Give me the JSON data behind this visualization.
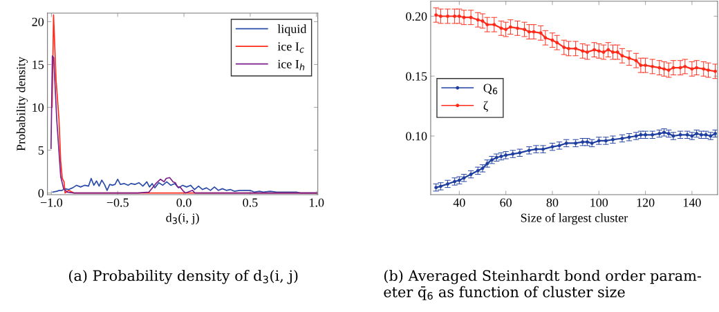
{
  "chart_data": [
    {
      "type": "line",
      "xlabel": "d$_{3}$(i, j)",
      "ylabel": "Probability density",
      "xlim": [
        -1.03,
        1.01
      ],
      "ylim": [
        -0.2,
        21
      ],
      "xticks": [
        {
          "value": -1.0,
          "label": "−1.0"
        },
        {
          "value": -0.5,
          "label": "−0.5"
        },
        {
          "value": 0.0,
          "label": "0.0"
        },
        {
          "value": 0.5,
          "label": "0.5"
        },
        {
          "value": 1.0,
          "label": "1.0"
        }
      ],
      "yticks": [
        0,
        5,
        10,
        15,
        20
      ],
      "grid": false,
      "legend": "top right",
      "marker": "none",
      "line_style": "solid",
      "annotations": [
        "(a) Probability density of d$_{3}$(i, j)"
      ],
      "series": [
        {
          "name": "liquid",
          "color": "#2a4aa8",
          "x": [
            -0.99,
            -0.96,
            -0.94,
            -0.92,
            -0.9,
            -0.87,
            -0.84,
            -0.81,
            -0.78,
            -0.75,
            -0.72,
            -0.7,
            -0.68,
            -0.66,
            -0.64,
            -0.62,
            -0.6,
            -0.58,
            -0.56,
            -0.54,
            -0.52,
            -0.5,
            -0.48,
            -0.45,
            -0.42,
            -0.4,
            -0.37,
            -0.34,
            -0.31,
            -0.28,
            -0.26,
            -0.24,
            -0.22,
            -0.19,
            -0.16,
            -0.13,
            -0.1,
            -0.07,
            -0.04,
            -0.01,
            0.02,
            0.05,
            0.08,
            0.11,
            0.14,
            0.17,
            0.2,
            0.23,
            0.26,
            0.29,
            0.32,
            0.35,
            0.38,
            0.42,
            0.46,
            0.5,
            0.53,
            0.57,
            0.6,
            0.65,
            0.7,
            0.75,
            0.8,
            0.85,
            0.88,
            0.95,
            1.0
          ],
          "values": [
            0.1,
            0.2,
            0.3,
            0.3,
            0.5,
            0.4,
            0.6,
            0.9,
            0.7,
            0.9,
            0.8,
            1.7,
            0.9,
            1.4,
            0.8,
            1.5,
            1.0,
            0.3,
            1.0,
            0.9,
            1.0,
            1.6,
            1.0,
            1.1,
            0.9,
            1.1,
            1.0,
            1.2,
            0.8,
            1.3,
            0.7,
            1.1,
            0.6,
            1.2,
            0.9,
            1.3,
            0.9,
            1.1,
            0.6,
            0.9,
            0.7,
            0.9,
            0.4,
            0.8,
            0.4,
            0.6,
            0.3,
            0.7,
            0.3,
            0.5,
            0.3,
            0.4,
            0.2,
            0.3,
            0.3,
            0.3,
            0.1,
            0.2,
            0.1,
            0.2,
            0.1,
            0.1,
            0.1,
            0.1,
            0.0,
            0.0,
            0.0
          ]
        },
        {
          "name": "ice I$_{c}$",
          "color": "#ff2a1a",
          "x": [
            -0.995,
            -0.984,
            -0.965,
            -0.943,
            -0.93,
            -0.918,
            -0.905,
            -0.897,
            -0.87,
            -0.83,
            0.0,
            1.0
          ],
          "values": [
            10,
            20.8,
            13.2,
            8.6,
            3.7,
            1.7,
            1.3,
            0.0,
            0.3,
            0.0,
            0.0,
            0.0
          ]
        },
        {
          "name": "ice I$_{h}$",
          "color": "#7a1f8a",
          "x": [
            -1.003,
            -0.993,
            -0.983,
            -0.96,
            -0.93,
            -0.908,
            -0.88,
            -0.83,
            -0.351,
            -0.264,
            -0.212,
            -0.177,
            -0.15,
            -0.134,
            -0.108,
            -0.082,
            -0.065,
            -0.048,
            -0.03,
            -0.004,
            0.013,
            0.065,
            0.082,
            1.0
          ],
          "values": [
            5.2,
            16,
            15.8,
            8.6,
            1.9,
            0.5,
            0.1,
            0.0,
            0.0,
            0.1,
            1.1,
            1.6,
            1.3,
            1.7,
            1.8,
            1.3,
            1.2,
            0.7,
            0.7,
            0.2,
            0.0,
            0.3,
            0.0,
            0.0
          ]
        }
      ]
    },
    {
      "type": "line",
      "xlabel": "Size of largest cluster",
      "xlim": [
        27.7,
        151
      ],
      "ylim": [
        0.051,
        0.2125
      ],
      "xticks": [
        40,
        60,
        80,
        100,
        120,
        140
      ],
      "yticks": [
        {
          "value": 0.1,
          "label": "0.10"
        },
        {
          "value": 0.15,
          "label": "0.15"
        },
        {
          "value": 0.2,
          "label": "0.20"
        }
      ],
      "grid": false,
      "legend": "left",
      "marker": "circle",
      "line_style": "solid",
      "annotations": [
        "(b) Averaged Steinhardt bond order param- eter q̄$_{6}$ as function of cluster size"
      ],
      "series": [
        {
          "name": "Q$_{6}$",
          "color": "#1f3fa0",
          "x": [
            30,
            32,
            35,
            38,
            40,
            42,
            45,
            48,
            50,
            52,
            54,
            56,
            58,
            60,
            63,
            66,
            70,
            73,
            76,
            80,
            83,
            86,
            90,
            93,
            95,
            97,
            100,
            103,
            106,
            110,
            113,
            116,
            118,
            120,
            123,
            126,
            128,
            130,
            132,
            135,
            138,
            140,
            142,
            144,
            146,
            148,
            150
          ],
          "values": [
            0.057,
            0.058,
            0.06,
            0.062,
            0.063,
            0.065,
            0.068,
            0.071,
            0.073,
            0.077,
            0.08,
            0.082,
            0.083,
            0.084,
            0.085,
            0.086,
            0.088,
            0.089,
            0.089,
            0.091,
            0.092,
            0.094,
            0.094,
            0.095,
            0.095,
            0.094,
            0.096,
            0.096,
            0.097,
            0.098,
            0.099,
            0.1,
            0.101,
            0.101,
            0.101,
            0.102,
            0.103,
            0.102,
            0.1,
            0.101,
            0.101,
            0.1,
            0.102,
            0.101,
            0.101,
            0.1,
            0.102
          ],
          "errors": [
            0.003,
            0.003,
            0.003,
            0.003,
            0.003,
            0.003,
            0.003,
            0.003,
            0.003,
            0.003,
            0.003,
            0.003,
            0.003,
            0.003,
            0.003,
            0.003,
            0.003,
            0.003,
            0.003,
            0.003,
            0.003,
            0.003,
            0.003,
            0.003,
            0.003,
            0.003,
            0.003,
            0.003,
            0.003,
            0.003,
            0.003,
            0.003,
            0.003,
            0.003,
            0.003,
            0.003,
            0.003,
            0.003,
            0.003,
            0.003,
            0.003,
            0.003,
            0.003,
            0.003,
            0.003,
            0.003,
            0.003
          ]
        },
        {
          "name": "ζ",
          "color": "#ff2a1a",
          "x": [
            30,
            32,
            35,
            38,
            40,
            42,
            45,
            48,
            50,
            52,
            55,
            58,
            60,
            62,
            65,
            68,
            70,
            72,
            75,
            77,
            80,
            82,
            85,
            87,
            90,
            93,
            95,
            98,
            100,
            102,
            104,
            106,
            108,
            110,
            113,
            116,
            118,
            120,
            123,
            126,
            128,
            130,
            132,
            135,
            137,
            140,
            142,
            145,
            147,
            150
          ],
          "values": [
            0.201,
            0.2,
            0.2,
            0.2,
            0.2,
            0.199,
            0.199,
            0.197,
            0.196,
            0.193,
            0.193,
            0.19,
            0.189,
            0.191,
            0.19,
            0.189,
            0.187,
            0.187,
            0.186,
            0.182,
            0.18,
            0.178,
            0.174,
            0.173,
            0.173,
            0.171,
            0.17,
            0.172,
            0.171,
            0.17,
            0.172,
            0.17,
            0.17,
            0.167,
            0.165,
            0.163,
            0.159,
            0.159,
            0.158,
            0.157,
            0.156,
            0.155,
            0.157,
            0.157,
            0.158,
            0.156,
            0.157,
            0.156,
            0.155,
            0.154
          ],
          "errors": [
            0.006,
            0.006,
            0.006,
            0.006,
            0.006,
            0.006,
            0.006,
            0.006,
            0.006,
            0.006,
            0.006,
            0.006,
            0.006,
            0.006,
            0.006,
            0.006,
            0.006,
            0.006,
            0.006,
            0.006,
            0.006,
            0.006,
            0.006,
            0.006,
            0.006,
            0.006,
            0.006,
            0.006,
            0.006,
            0.006,
            0.006,
            0.006,
            0.006,
            0.006,
            0.006,
            0.006,
            0.006,
            0.006,
            0.006,
            0.006,
            0.006,
            0.006,
            0.006,
            0.006,
            0.006,
            0.006,
            0.006,
            0.006,
            0.006,
            0.006
          ]
        }
      ]
    }
  ]
}
